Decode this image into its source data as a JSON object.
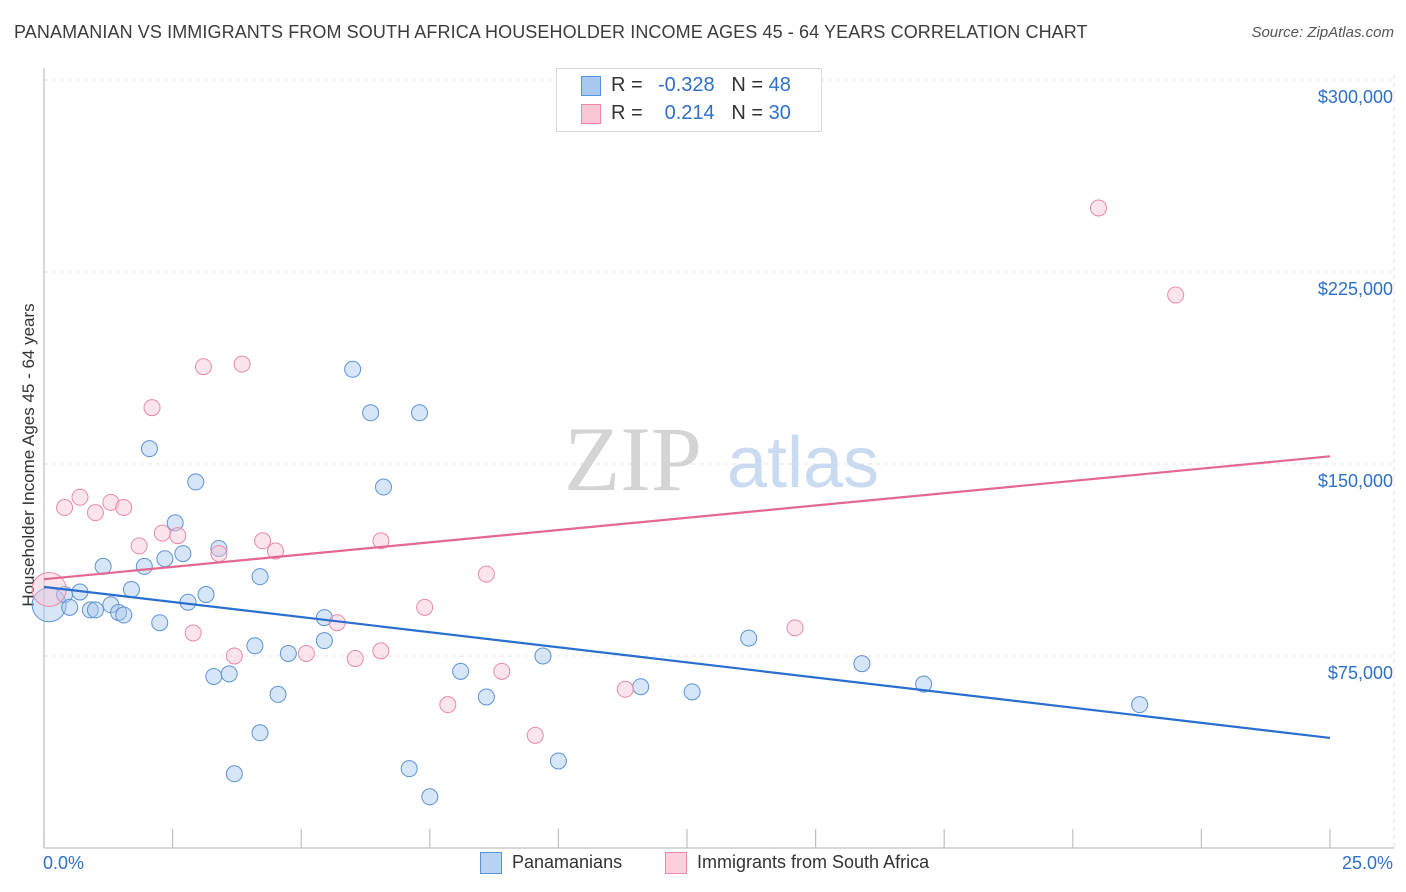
{
  "title": "PANAMANIAN VS IMMIGRANTS FROM SOUTH AFRICA HOUSEHOLDER INCOME AGES 45 - 64 YEARS CORRELATION CHART",
  "source": "Source: ZipAtlas.com",
  "watermark": {
    "zip": "ZIP",
    "atlas": "atlas"
  },
  "stats": [
    {
      "r_label": "R =",
      "r": "-0.328",
      "n_label": "N =",
      "n": "48",
      "color": "#a9c8ef",
      "border": "#5b93d6"
    },
    {
      "r_label": "R =",
      "r": "0.214",
      "n_label": "N =",
      "n": "30",
      "color": "#f8c6d4",
      "border": "#e98aa6"
    }
  ],
  "legend": [
    {
      "label": "Panamanians",
      "color": "#b9d3f3",
      "border": "#5b93d6"
    },
    {
      "label": "Immigrants from South Africa",
      "color": "#fad0dc",
      "border": "#e98aa6"
    }
  ],
  "chart_data": {
    "type": "scatter",
    "title": "PANAMANIAN VS IMMIGRANTS FROM SOUTH AFRICA HOUSEHOLDER INCOME AGES 45 - 64 YEARS CORRELATION CHART",
    "xlabel": "",
    "ylabel": "Householder Income Ages 45 - 64 years",
    "xlim": [
      0,
      25
    ],
    "ylim": [
      0,
      300000
    ],
    "x_tick_labels": [
      {
        "value": 0,
        "label": "0.0%"
      },
      {
        "value": 25,
        "label": "25.0%"
      }
    ],
    "y_ticks": [
      {
        "value": 75000,
        "label": "$75,000"
      },
      {
        "value": 150000,
        "label": "$150,000"
      },
      {
        "value": 225000,
        "label": "$225,000"
      },
      {
        "value": 300000,
        "label": "$300,000"
      }
    ],
    "series": [
      {
        "name": "Panamanians",
        "color": "#5b93d6",
        "fill": "rgba(166,198,240,0.45)",
        "line_color": "#2a6fd0",
        "trend": {
          "x": [
            0,
            25
          ],
          "y": [
            102000,
            43000
          ]
        },
        "points": [
          {
            "x": 0.1,
            "y": 95000,
            "big": true
          },
          {
            "x": 0.4,
            "y": 99000
          },
          {
            "x": 0.5,
            "y": 94000
          },
          {
            "x": 0.7,
            "y": 100000
          },
          {
            "x": 0.9,
            "y": 93000
          },
          {
            "x": 1.0,
            "y": 93000
          },
          {
            "x": 1.15,
            "y": 110000
          },
          {
            "x": 1.3,
            "y": 95000
          },
          {
            "x": 1.45,
            "y": 92000
          },
          {
            "x": 1.55,
            "y": 91000
          },
          {
            "x": 1.7,
            "y": 101000
          },
          {
            "x": 1.95,
            "y": 110000
          },
          {
            "x": 2.05,
            "y": 156000
          },
          {
            "x": 2.25,
            "y": 88000
          },
          {
            "x": 2.35,
            "y": 113000
          },
          {
            "x": 2.55,
            "y": 127000
          },
          {
            "x": 2.7,
            "y": 115000
          },
          {
            "x": 2.8,
            "y": 96000
          },
          {
            "x": 2.95,
            "y": 143000
          },
          {
            "x": 3.15,
            "y": 99000
          },
          {
            "x": 3.3,
            "y": 67000
          },
          {
            "x": 3.4,
            "y": 117000
          },
          {
            "x": 3.6,
            "y": 68000
          },
          {
            "x": 3.7,
            "y": 29000
          },
          {
            "x": 4.2,
            "y": 106000
          },
          {
            "x": 4.1,
            "y": 79000
          },
          {
            "x": 4.2,
            "y": 45000
          },
          {
            "x": 4.55,
            "y": 60000
          },
          {
            "x": 4.75,
            "y": 76000
          },
          {
            "x": 5.45,
            "y": 90000
          },
          {
            "x": 5.45,
            "y": 81000
          },
          {
            "x": 6.0,
            "y": 187000
          },
          {
            "x": 6.35,
            "y": 170000
          },
          {
            "x": 6.6,
            "y": 141000
          },
          {
            "x": 7.1,
            "y": 31000
          },
          {
            "x": 7.3,
            "y": 170000
          },
          {
            "x": 7.5,
            "y": 20000
          },
          {
            "x": 8.1,
            "y": 69000
          },
          {
            "x": 8.6,
            "y": 59000
          },
          {
            "x": 9.7,
            "y": 75000
          },
          {
            "x": 10.0,
            "y": 34000
          },
          {
            "x": 11.6,
            "y": 63000
          },
          {
            "x": 12.6,
            "y": 61000
          },
          {
            "x": 13.7,
            "y": 82000
          },
          {
            "x": 15.9,
            "y": 72000
          },
          {
            "x": 17.1,
            "y": 64000
          },
          {
            "x": 21.3,
            "y": 56000
          }
        ]
      },
      {
        "name": "Immigrants from South Africa",
        "color": "#e98aa6",
        "fill": "rgba(248,196,212,0.45)",
        "line_color": "#e3678f",
        "trend": {
          "x": [
            0,
            25
          ],
          "y": [
            105000,
            153000
          ]
        },
        "points": [
          {
            "x": 0.1,
            "y": 101000,
            "big": true
          },
          {
            "x": 0.4,
            "y": 133000
          },
          {
            "x": 0.7,
            "y": 137000
          },
          {
            "x": 1.0,
            "y": 131000
          },
          {
            "x": 1.3,
            "y": 135000
          },
          {
            "x": 1.55,
            "y": 133000
          },
          {
            "x": 1.85,
            "y": 118000
          },
          {
            "x": 2.1,
            "y": 172000
          },
          {
            "x": 2.3,
            "y": 123000
          },
          {
            "x": 2.6,
            "y": 122000
          },
          {
            "x": 2.9,
            "y": 84000
          },
          {
            "x": 3.1,
            "y": 188000
          },
          {
            "x": 3.4,
            "y": 115000
          },
          {
            "x": 3.7,
            "y": 75000
          },
          {
            "x": 3.85,
            "y": 189000
          },
          {
            "x": 4.25,
            "y": 120000
          },
          {
            "x": 4.5,
            "y": 116000
          },
          {
            "x": 5.1,
            "y": 76000
          },
          {
            "x": 5.7,
            "y": 88000
          },
          {
            "x": 6.05,
            "y": 74000
          },
          {
            "x": 6.55,
            "y": 120000
          },
          {
            "x": 6.55,
            "y": 77000
          },
          {
            "x": 7.4,
            "y": 94000
          },
          {
            "x": 7.85,
            "y": 56000
          },
          {
            "x": 8.6,
            "y": 107000
          },
          {
            "x": 8.9,
            "y": 69000
          },
          {
            "x": 9.55,
            "y": 44000
          },
          {
            "x": 11.3,
            "y": 62000
          },
          {
            "x": 14.6,
            "y": 86000
          },
          {
            "x": 20.5,
            "y": 250000
          },
          {
            "x": 22.0,
            "y": 216000
          }
        ]
      }
    ]
  }
}
